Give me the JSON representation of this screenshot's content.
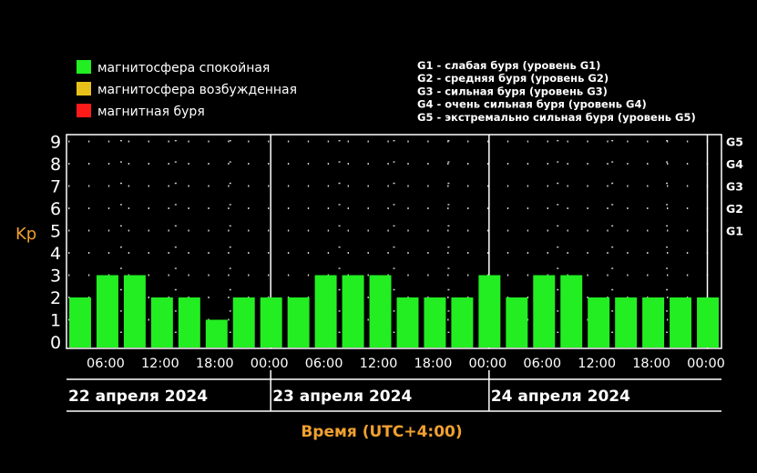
{
  "chart_data": {
    "type": "bar",
    "legend": [
      {
        "label": "магнитосфера спокойная",
        "color": "#22ee22"
      },
      {
        "label": "магнитосфера возбужденная",
        "color": "#e8c21a"
      },
      {
        "label": "магнитная буря",
        "color": "#ff1a1a"
      }
    ],
    "g_legend": [
      "G1 - слабая буря (уровень G1)",
      "G2 - средняя буря (уровень G2)",
      "G3 - сильная буря (уровень G3)",
      "G4 - очень сильная буря (уровень G4)",
      "G5 - экстремально сильная буря (уровень G5)"
    ],
    "ylabel": "Kp",
    "ylim": [
      0,
      9
    ],
    "yticks": [
      "0",
      "1",
      "2",
      "3",
      "4",
      "5",
      "6",
      "7",
      "8",
      "9"
    ],
    "g_levels": [
      {
        "label": "G1",
        "kp": 5
      },
      {
        "label": "G2",
        "kp": 6
      },
      {
        "label": "G3",
        "kp": 7
      },
      {
        "label": "G4",
        "kp": 8
      },
      {
        "label": "G5",
        "kp": 9
      }
    ],
    "bar_interval_hours": 3,
    "values": [
      2,
      3,
      3,
      2,
      2,
      1,
      2,
      2,
      2,
      3,
      3,
      3,
      2,
      2,
      2,
      3,
      2,
      3,
      3,
      2,
      2,
      2,
      2,
      2
    ],
    "bar_colors": [
      "#22ee22",
      "#22ee22",
      "#22ee22",
      "#22ee22",
      "#22ee22",
      "#22ee22",
      "#22ee22",
      "#22ee22",
      "#22ee22",
      "#22ee22",
      "#22ee22",
      "#22ee22",
      "#22ee22",
      "#22ee22",
      "#22ee22",
      "#22ee22",
      "#22ee22",
      "#22ee22",
      "#22ee22",
      "#22ee22",
      "#22ee22",
      "#22ee22",
      "#22ee22",
      "#22ee22"
    ],
    "xticks": [
      "06:00",
      "12:00",
      "18:00",
      "00:00",
      "06:00",
      "12:00",
      "18:00",
      "00:00",
      "06:00",
      "12:00",
      "18:00",
      "00:00"
    ],
    "days": [
      "22 апреля 2024",
      "23 апреля 2024",
      "24 апреля 2024"
    ],
    "xlabel": "Время (UTC+4:00)",
    "grid": true
  }
}
